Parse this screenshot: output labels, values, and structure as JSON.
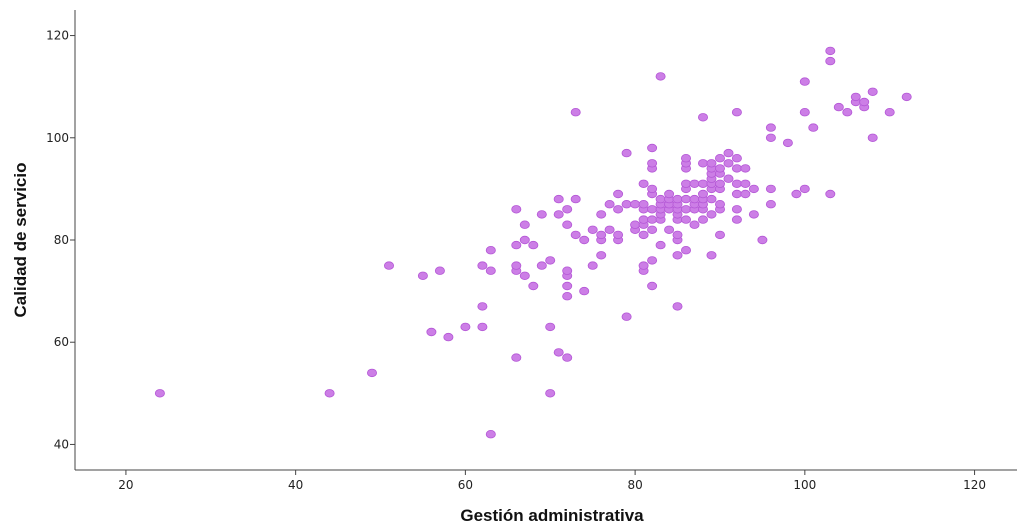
{
  "chart_data": {
    "type": "scatter",
    "title": "",
    "xlabel": "Gestión administrativa",
    "ylabel": "Calidad de servicio",
    "xlim": [
      14,
      125
    ],
    "ylim": [
      35,
      125
    ],
    "xticks": [
      20,
      40,
      60,
      80,
      100,
      120
    ],
    "yticks": [
      40,
      60,
      80,
      100,
      120
    ],
    "grid": false,
    "legend": "none",
    "marker_color": "#cc7ee6",
    "marker_edge_color": "#b457d6",
    "points": [
      [
        24,
        50
      ],
      [
        44,
        50
      ],
      [
        49,
        54
      ],
      [
        51,
        75
      ],
      [
        55,
        73
      ],
      [
        56,
        62
      ],
      [
        57,
        74
      ],
      [
        58,
        61
      ],
      [
        60,
        63
      ],
      [
        62,
        63
      ],
      [
        62,
        67
      ],
      [
        62,
        75
      ],
      [
        63,
        42
      ],
      [
        63,
        74
      ],
      [
        63,
        78
      ],
      [
        66,
        57
      ],
      [
        66,
        74
      ],
      [
        66,
        75
      ],
      [
        66,
        79
      ],
      [
        66,
        86
      ],
      [
        67,
        73
      ],
      [
        67,
        80
      ],
      [
        67,
        83
      ],
      [
        68,
        71
      ],
      [
        68,
        79
      ],
      [
        69,
        75
      ],
      [
        69,
        85
      ],
      [
        70,
        50
      ],
      [
        70,
        63
      ],
      [
        70,
        76
      ],
      [
        71,
        58
      ],
      [
        71,
        85
      ],
      [
        71,
        88
      ],
      [
        72,
        57
      ],
      [
        72,
        69
      ],
      [
        72,
        71
      ],
      [
        72,
        73
      ],
      [
        72,
        74
      ],
      [
        72,
        83
      ],
      [
        72,
        86
      ],
      [
        73,
        81
      ],
      [
        73,
        88
      ],
      [
        73,
        105
      ],
      [
        74,
        70
      ],
      [
        74,
        80
      ],
      [
        75,
        75
      ],
      [
        75,
        82
      ],
      [
        76,
        77
      ],
      [
        76,
        80
      ],
      [
        76,
        81
      ],
      [
        76,
        85
      ],
      [
        77,
        82
      ],
      [
        77,
        87
      ],
      [
        78,
        80
      ],
      [
        78,
        81
      ],
      [
        78,
        86
      ],
      [
        78,
        89
      ],
      [
        79,
        65
      ],
      [
        79,
        87
      ],
      [
        79,
        97
      ],
      [
        80,
        82
      ],
      [
        80,
        83
      ],
      [
        80,
        87
      ],
      [
        81,
        74
      ],
      [
        81,
        75
      ],
      [
        81,
        81
      ],
      [
        81,
        83
      ],
      [
        81,
        84
      ],
      [
        81,
        86
      ],
      [
        81,
        87
      ],
      [
        81,
        91
      ],
      [
        82,
        71
      ],
      [
        82,
        76
      ],
      [
        82,
        82
      ],
      [
        82,
        84
      ],
      [
        82,
        86
      ],
      [
        82,
        89
      ],
      [
        82,
        90
      ],
      [
        82,
        94
      ],
      [
        82,
        95
      ],
      [
        82,
        98
      ],
      [
        83,
        79
      ],
      [
        83,
        84
      ],
      [
        83,
        85
      ],
      [
        83,
        86
      ],
      [
        83,
        87
      ],
      [
        83,
        88
      ],
      [
        83,
        112
      ],
      [
        84,
        82
      ],
      [
        84,
        86
      ],
      [
        84,
        87
      ],
      [
        84,
        88
      ],
      [
        84,
        89
      ],
      [
        85,
        67
      ],
      [
        85,
        77
      ],
      [
        85,
        80
      ],
      [
        85,
        81
      ],
      [
        85,
        84
      ],
      [
        85,
        85
      ],
      [
        85,
        86
      ],
      [
        85,
        87
      ],
      [
        85,
        88
      ],
      [
        86,
        78
      ],
      [
        86,
        84
      ],
      [
        86,
        86
      ],
      [
        86,
        88
      ],
      [
        86,
        90
      ],
      [
        86,
        91
      ],
      [
        86,
        94
      ],
      [
        86,
        95
      ],
      [
        86,
        96
      ],
      [
        87,
        83
      ],
      [
        87,
        86
      ],
      [
        87,
        87
      ],
      [
        87,
        88
      ],
      [
        87,
        91
      ],
      [
        88,
        84
      ],
      [
        88,
        86
      ],
      [
        88,
        87
      ],
      [
        88,
        88
      ],
      [
        88,
        89
      ],
      [
        88,
        91
      ],
      [
        88,
        95
      ],
      [
        88,
        104
      ],
      [
        89,
        77
      ],
      [
        89,
        85
      ],
      [
        89,
        88
      ],
      [
        89,
        90
      ],
      [
        89,
        91
      ],
      [
        89,
        92
      ],
      [
        89,
        93
      ],
      [
        89,
        94
      ],
      [
        89,
        95
      ],
      [
        90,
        81
      ],
      [
        90,
        86
      ],
      [
        90,
        87
      ],
      [
        90,
        90
      ],
      [
        90,
        91
      ],
      [
        90,
        93
      ],
      [
        90,
        94
      ],
      [
        90,
        96
      ],
      [
        91,
        92
      ],
      [
        91,
        95
      ],
      [
        91,
        97
      ],
      [
        92,
        84
      ],
      [
        92,
        86
      ],
      [
        92,
        89
      ],
      [
        92,
        91
      ],
      [
        92,
        94
      ],
      [
        92,
        96
      ],
      [
        92,
        105
      ],
      [
        93,
        89
      ],
      [
        93,
        91
      ],
      [
        93,
        94
      ],
      [
        94,
        85
      ],
      [
        94,
        90
      ],
      [
        95,
        80
      ],
      [
        96,
        87
      ],
      [
        96,
        90
      ],
      [
        96,
        100
      ],
      [
        96,
        102
      ],
      [
        98,
        99
      ],
      [
        99,
        89
      ],
      [
        100,
        90
      ],
      [
        100,
        105
      ],
      [
        100,
        111
      ],
      [
        101,
        102
      ],
      [
        103,
        89
      ],
      [
        103,
        115
      ],
      [
        103,
        117
      ],
      [
        104,
        106
      ],
      [
        105,
        105
      ],
      [
        106,
        107
      ],
      [
        106,
        108
      ],
      [
        107,
        106
      ],
      [
        107,
        107
      ],
      [
        108,
        100
      ],
      [
        108,
        109
      ],
      [
        110,
        105
      ],
      [
        112,
        108
      ]
    ]
  }
}
